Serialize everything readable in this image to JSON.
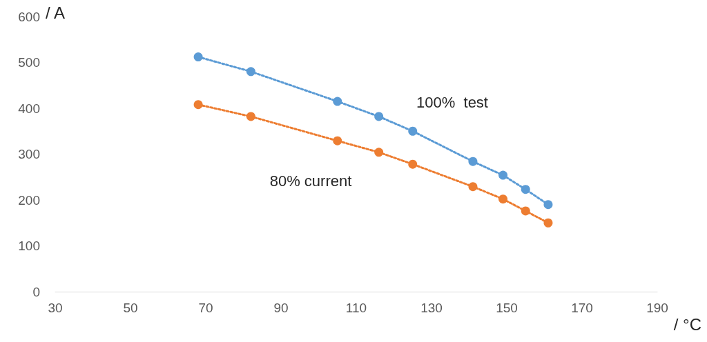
{
  "chart_data": {
    "type": "line",
    "xlabel": "/ °C",
    "ylabel": "/ A",
    "xlim": [
      30,
      190
    ],
    "xticks": [
      30,
      50,
      70,
      90,
      110,
      130,
      150,
      170,
      190
    ],
    "ylim": [
      0,
      600
    ],
    "yticks": [
      0,
      100,
      200,
      300,
      400,
      500,
      600
    ],
    "grid": false,
    "marker": "circle",
    "line_style": "dotted",
    "series": [
      {
        "color": "#5b9bd5",
        "x": [
          68,
          82,
          105,
          116,
          125,
          141,
          149,
          155,
          161
        ],
        "values": [
          512,
          480,
          415,
          382,
          350,
          284,
          254,
          223,
          190
        ]
      },
      {
        "color": "#ed7d31",
        "x": [
          68,
          82,
          105,
          116,
          125,
          141,
          149,
          155,
          161
        ],
        "values": [
          408,
          382,
          329,
          304,
          278,
          229,
          202,
          176,
          150
        ]
      }
    ],
    "annotations": [
      "100%  test",
      "80% current"
    ]
  }
}
